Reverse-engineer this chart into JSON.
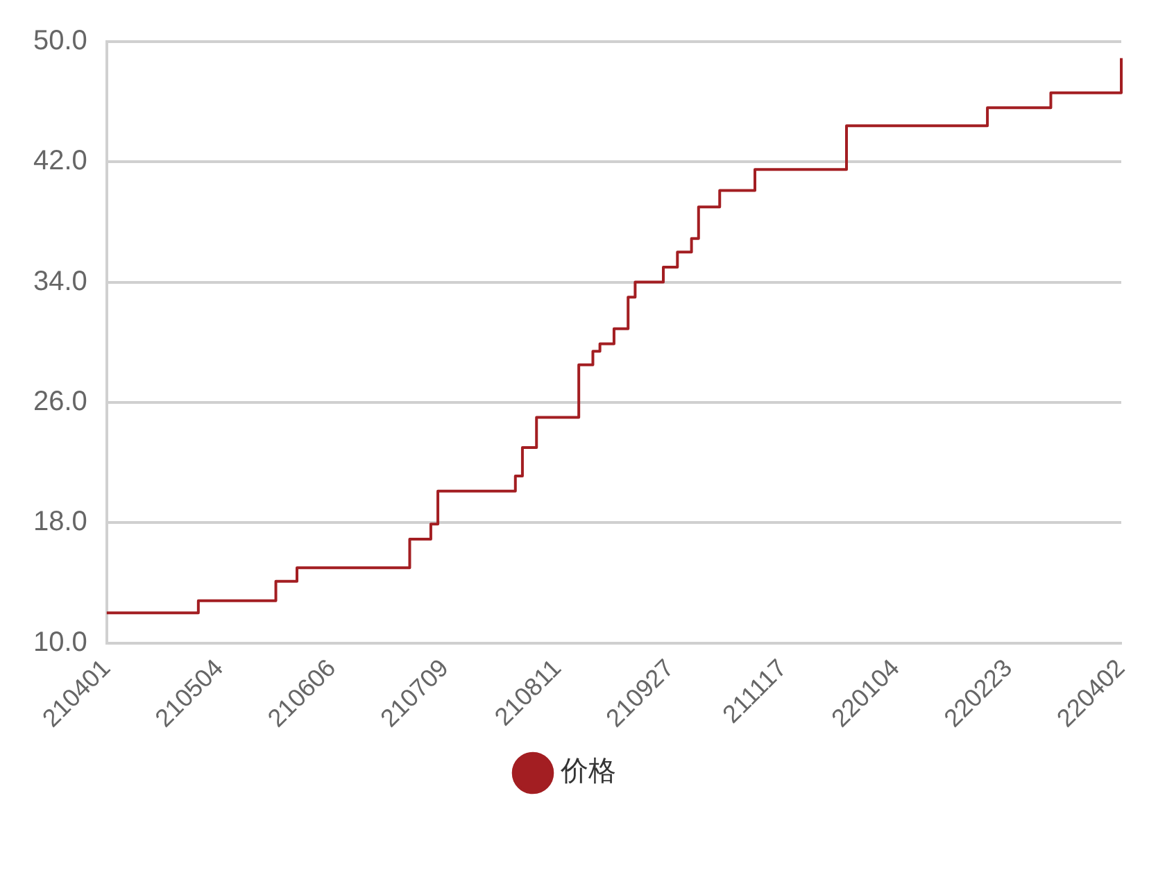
{
  "chart_data": {
    "type": "step",
    "categories": [
      "210401",
      null,
      null,
      null,
      null,
      null,
      null,
      null,
      null,
      null,
      null,
      null,
      null,
      null,
      null,
      null,
      "210504",
      null,
      null,
      null,
      null,
      null,
      null,
      null,
      null,
      null,
      null,
      null,
      null,
      null,
      null,
      null,
      "210606",
      null,
      null,
      null,
      null,
      null,
      null,
      null,
      null,
      null,
      null,
      null,
      null,
      null,
      null,
      null,
      "210709",
      null,
      null,
      null,
      null,
      null,
      null,
      null,
      null,
      null,
      null,
      null,
      null,
      null,
      null,
      null,
      "210811",
      null,
      null,
      null,
      null,
      null,
      null,
      null,
      null,
      null,
      null,
      null,
      null,
      null,
      null,
      null,
      "210927",
      null,
      null,
      null,
      null,
      null,
      null,
      null,
      null,
      null,
      null,
      null,
      null,
      null,
      null,
      null,
      "211117",
      null,
      null,
      null,
      null,
      null,
      null,
      null,
      null,
      null,
      null,
      null,
      null,
      null,
      null,
      null,
      "220104",
      null,
      null,
      null,
      null,
      null,
      null,
      null,
      null,
      null,
      null,
      null,
      null,
      null,
      null,
      null,
      "220223",
      null,
      null,
      null,
      null,
      null,
      null,
      null,
      null,
      null,
      null,
      null,
      null,
      null,
      null,
      null,
      "220402"
    ],
    "series": [
      {
        "name": "价格",
        "color": "#a31e22",
        "values": [
          12.0,
          12.0,
          12.0,
          12.0,
          12.0,
          12.0,
          12.0,
          12.0,
          12.0,
          12.0,
          12.0,
          12.0,
          12.0,
          12.8,
          12.8,
          12.8,
          12.8,
          12.8,
          12.8,
          12.8,
          12.8,
          12.8,
          12.8,
          12.8,
          14.1,
          14.1,
          14.1,
          15.0,
          15.0,
          15.0,
          15.0,
          15.0,
          15.0,
          15.0,
          15.0,
          15.0,
          15.0,
          15.0,
          15.0,
          15.0,
          15.0,
          15.0,
          15.0,
          16.9,
          16.9,
          16.9,
          17.9,
          20.1,
          20.1,
          20.1,
          20.1,
          20.1,
          20.1,
          20.1,
          20.1,
          20.1,
          20.1,
          20.1,
          21.1,
          23.0,
          23.0,
          25.0,
          25.0,
          25.0,
          25.0,
          25.0,
          25.0,
          28.5,
          28.5,
          29.4,
          29.9,
          29.9,
          30.9,
          30.9,
          33.0,
          34.0,
          34.0,
          34.0,
          34.0,
          35.0,
          35.0,
          36.0,
          36.0,
          36.9,
          39.0,
          39.0,
          39.0,
          40.1,
          40.1,
          40.1,
          40.1,
          40.1,
          41.5,
          41.5,
          41.5,
          41.5,
          41.5,
          41.5,
          41.5,
          41.5,
          41.5,
          41.5,
          41.5,
          41.5,
          41.5,
          44.4,
          44.4,
          44.4,
          44.4,
          44.4,
          44.4,
          44.4,
          44.4,
          44.4,
          44.4,
          44.4,
          44.4,
          44.4,
          44.4,
          44.4,
          44.4,
          44.4,
          44.4,
          44.4,
          44.4,
          45.6,
          45.6,
          45.6,
          45.6,
          45.6,
          45.6,
          45.6,
          45.6,
          45.6,
          46.6,
          46.6,
          46.6,
          46.6,
          46.6,
          46.6,
          46.6,
          46.6,
          46.6,
          46.6,
          48.9
        ]
      }
    ],
    "ylim": [
      10,
      50
    ],
    "yticks": [
      {
        "value": 10,
        "label": "10.0"
      },
      {
        "value": 18,
        "label": "18.0"
      },
      {
        "value": 26,
        "label": "26.0"
      },
      {
        "value": 34,
        "label": "34.0"
      },
      {
        "value": 42,
        "label": "42.0"
      },
      {
        "value": 50,
        "label": "50.0"
      }
    ],
    "grid": "y",
    "legend": "bottom",
    "marker": "none",
    "line_style": "solid"
  }
}
